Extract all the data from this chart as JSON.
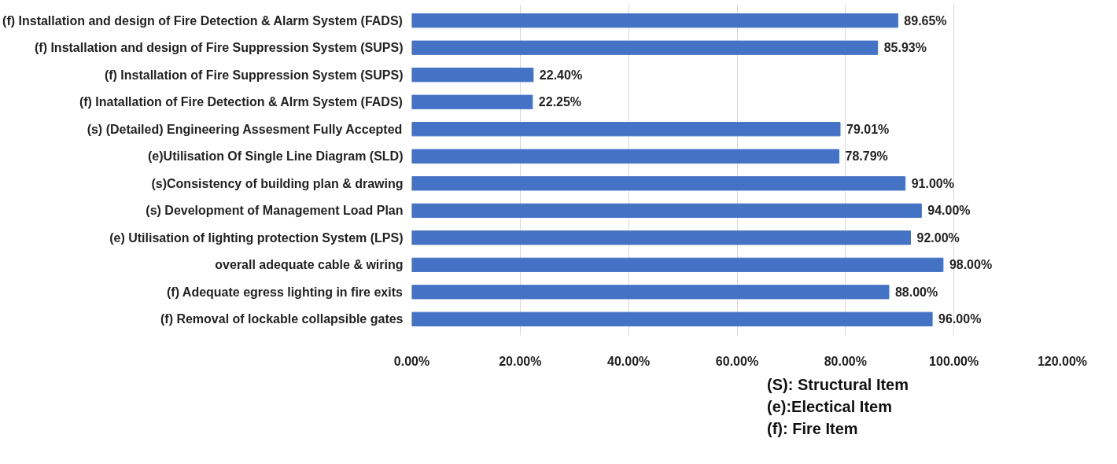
{
  "chart_data": {
    "type": "bar",
    "orientation": "horizontal",
    "categories": [
      "(f) Installation and design of Fire Detection & Alarm System (FADS)",
      "(f) Installation and design of Fire Suppression System (SUPS)",
      "(f) Installation of Fire Suppression System (SUPS)",
      "(f) Inatallation of Fire Detection & Alrm System (FADS)",
      "(s) (Detailed) Engineering Assesment Fully Accepted",
      "(e)Utilisation Of Single Line Diagram (SLD)",
      "(s)Consistency of building plan & drawing",
      "(s) Development of Management Load Plan",
      "(e) Utilisation of lighting protection System (LPS)",
      "overall adequate cable & wiring",
      "(f) Adequate egress lighting in fire exits",
      "(f) Removal of lockable collapsible gates"
    ],
    "values": [
      89.65,
      85.93,
      22.4,
      22.25,
      79.01,
      78.79,
      91.0,
      94.0,
      92.0,
      98.0,
      88.0,
      96.0
    ],
    "value_labels": [
      "89.65%",
      "85.93%",
      "22.40%",
      "22.25%",
      "79.01%",
      "78.79%",
      "91.00%",
      "94.00%",
      "92.00%",
      "98.00%",
      "88.00%",
      "96.00%"
    ],
    "color": "#4472c4",
    "xlim": [
      0,
      120
    ],
    "xticks": [
      {
        "value": 0,
        "label": "0.00%"
      },
      {
        "value": 20,
        "label": "20.00%"
      },
      {
        "value": 40,
        "label": "40.00%"
      },
      {
        "value": 60,
        "label": "60.00%"
      },
      {
        "value": 80,
        "label": "80.00%"
      },
      {
        "value": 100,
        "label": "100.00%"
      },
      {
        "value": 120,
        "label": "120.00%"
      }
    ],
    "grid": "x",
    "annotations": [
      "(S): Structural Item",
      "(e):Electical Item",
      "(f): Fire Item"
    ]
  }
}
